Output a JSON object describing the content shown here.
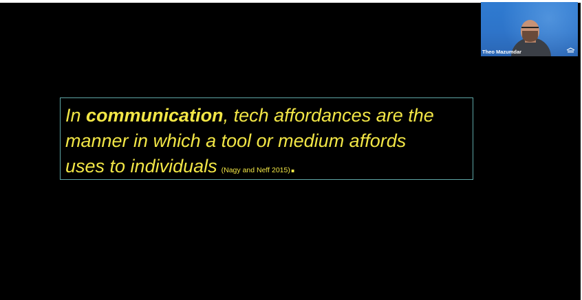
{
  "slide": {
    "quote": {
      "prefix": "In ",
      "emphasis": "communication",
      "line1_rest": ", tech affordances are the",
      "line2": "manner in which a tool or medium affords",
      "line3": "uses to individuals",
      "citation": "(Nagy and Neff 2015)",
      "period": "."
    }
  },
  "video": {
    "participant_name": "Theo Mazumdar",
    "logo_icon": "institution-logo-icon"
  },
  "colors": {
    "slide_background": "#000000",
    "quote_text": "#f2e646",
    "quote_border": "#5fa8a8",
    "video_background": "#2e74c9"
  }
}
